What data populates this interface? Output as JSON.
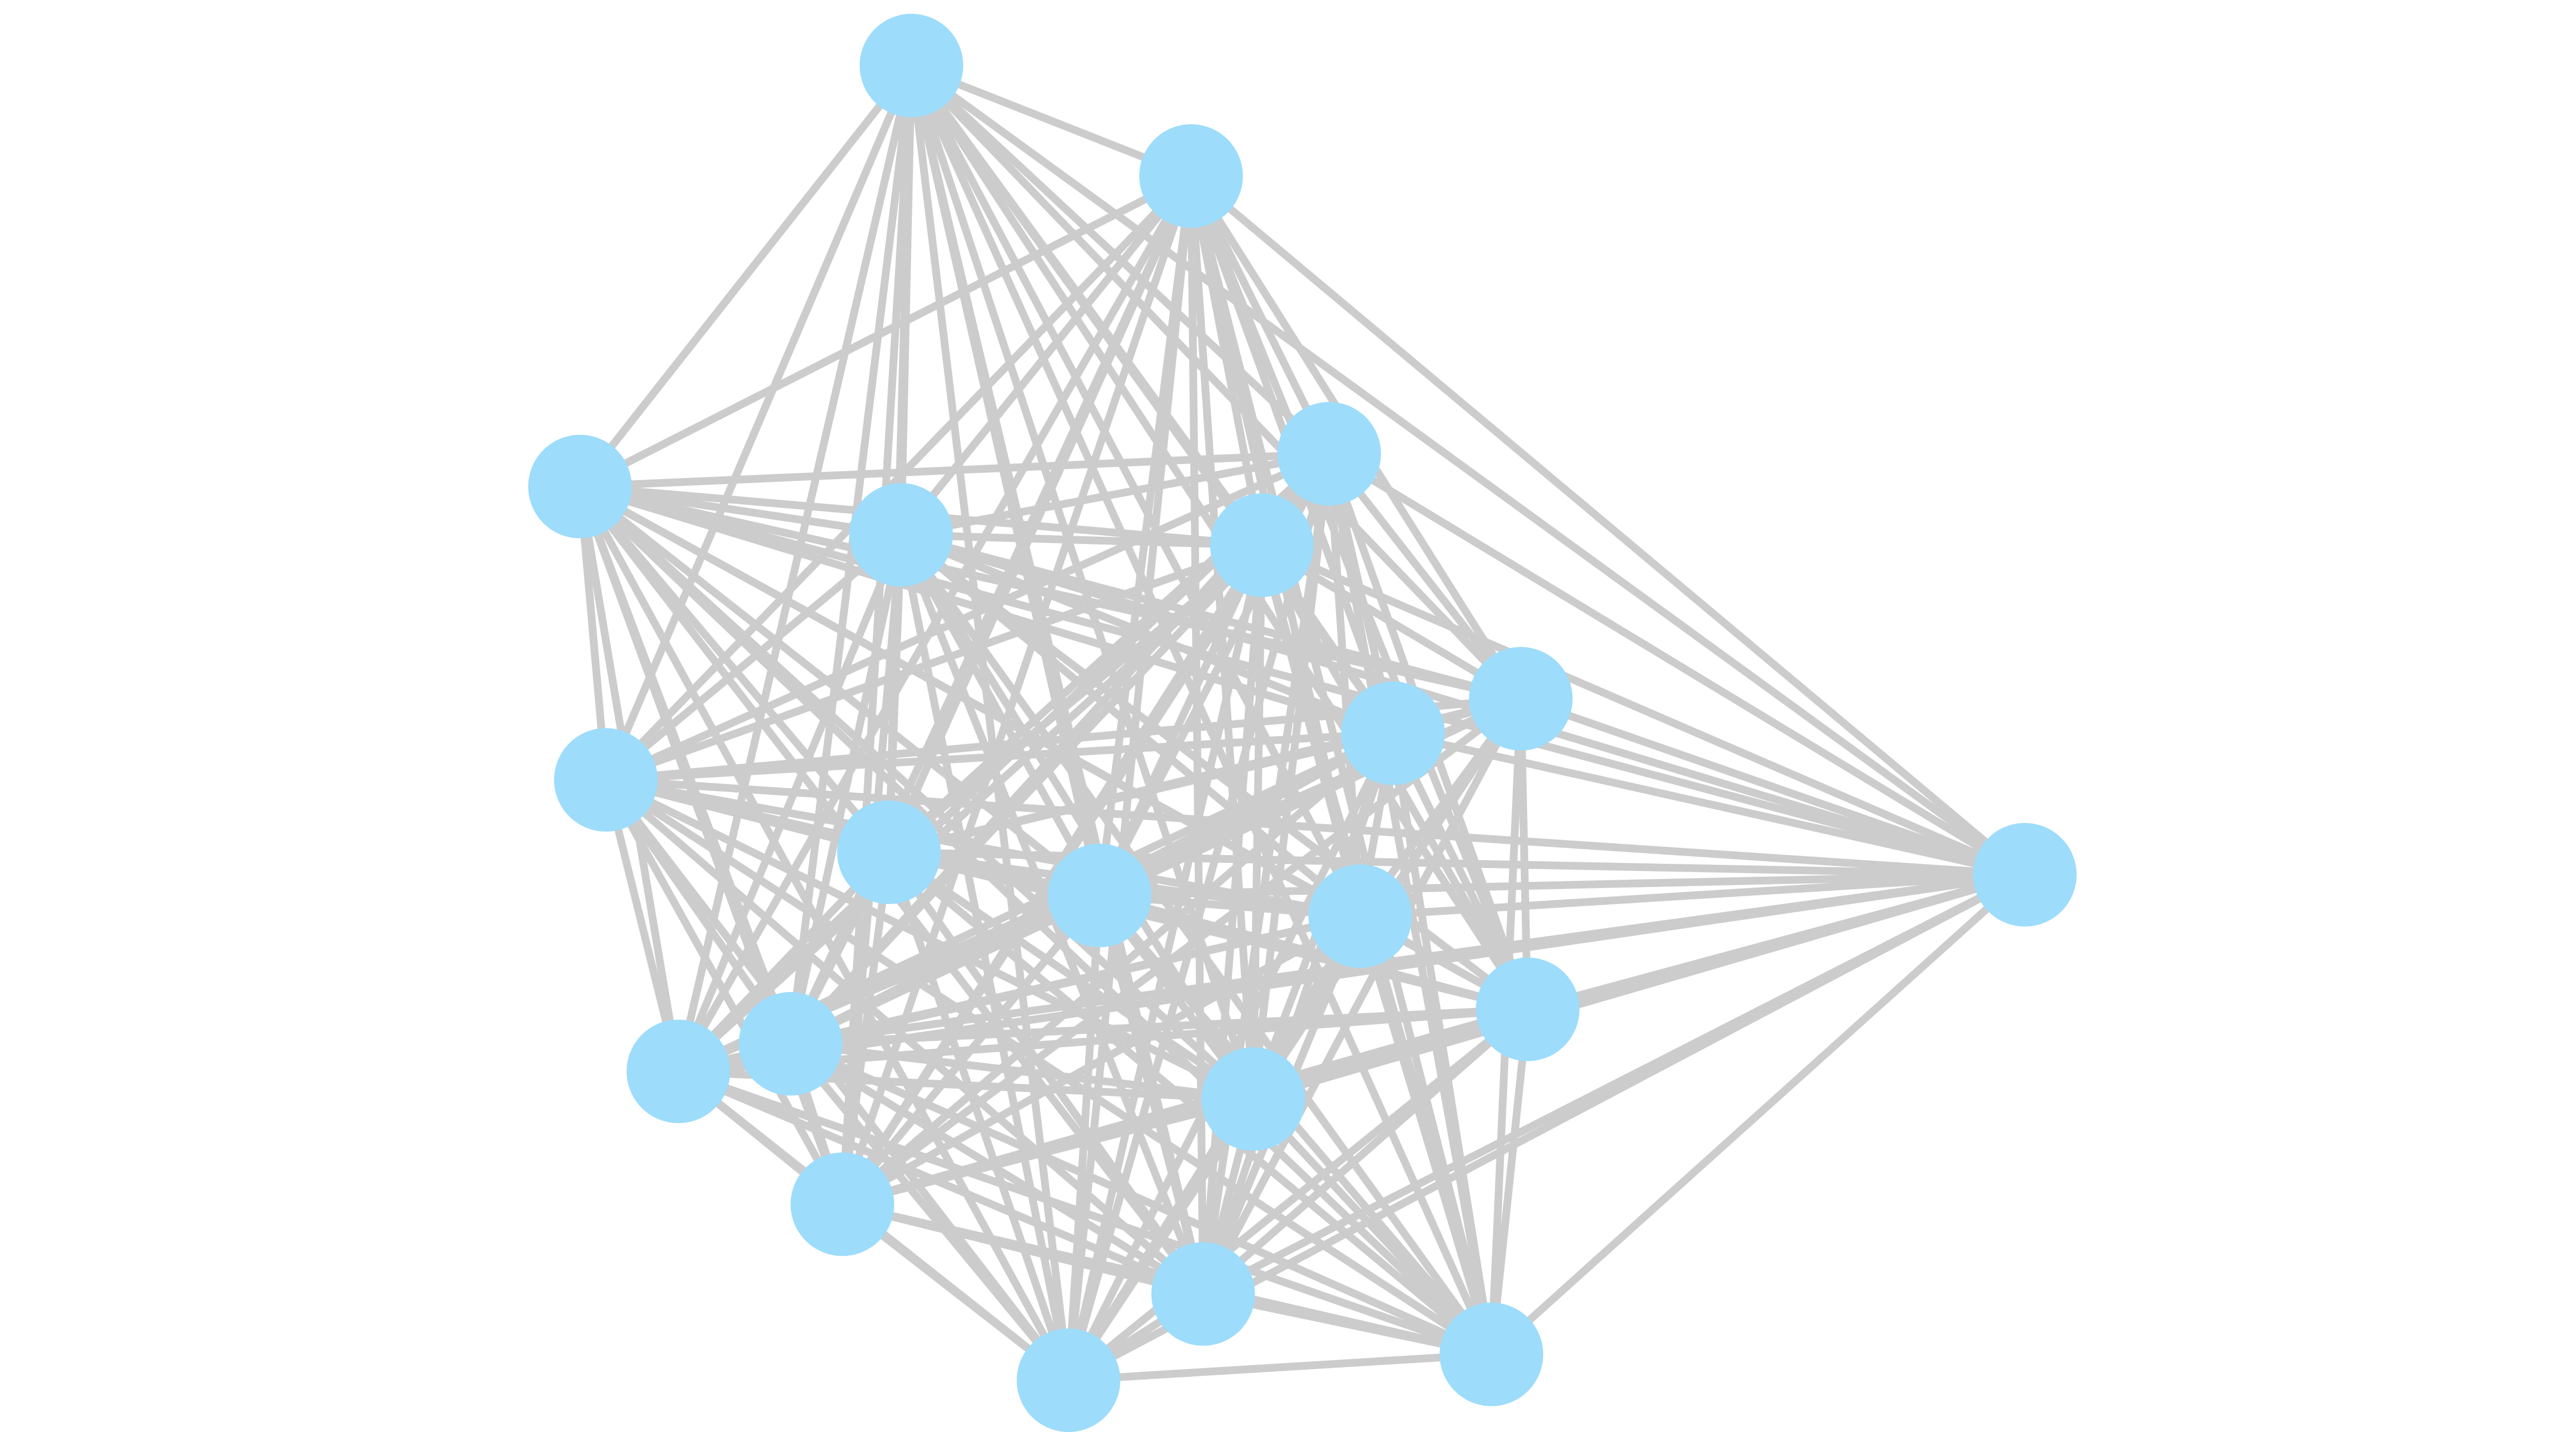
{
  "graph": {
    "node_count": 21,
    "edge_pattern": "near-complete",
    "node_color": "#9ddcfb",
    "edge_color": "#cccccc",
    "background": "#ffffff",
    "labels_shown": false
  }
}
